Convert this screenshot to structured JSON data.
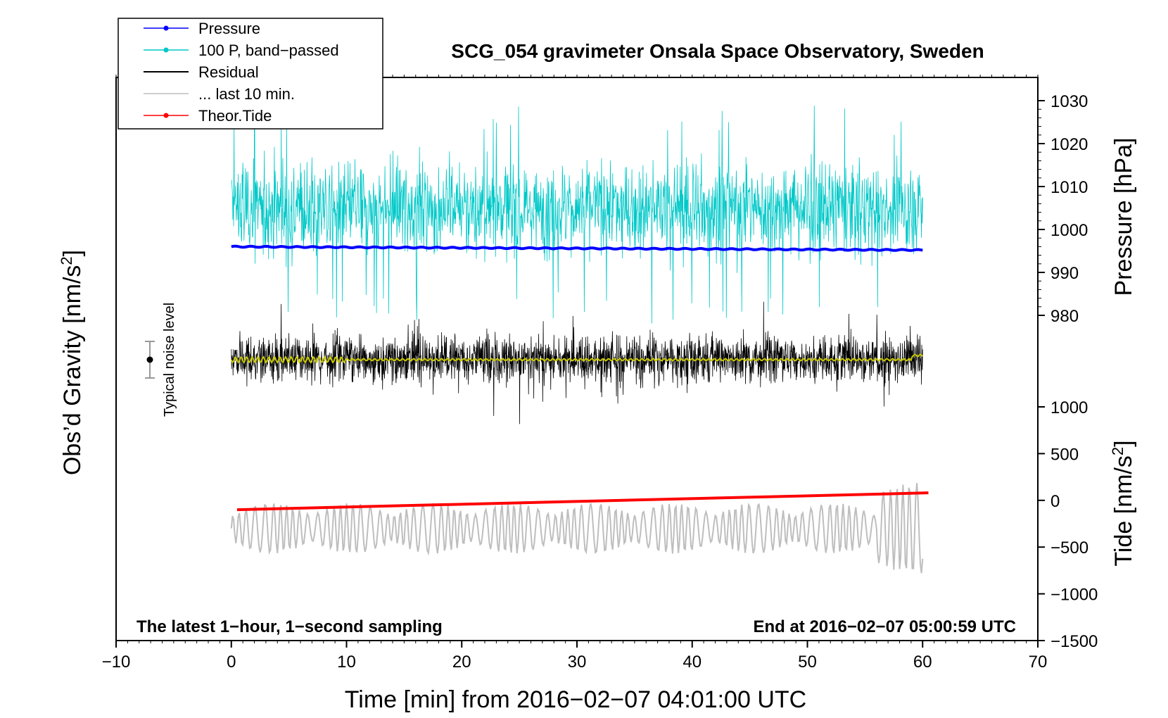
{
  "chart_data": {
    "type": "line",
    "title": "SCG_054 gravimeter Onsala Space Observatory, Sweden",
    "xlabel": "Time [min] from 2016−02−07 04:01:00 UTC",
    "ylabel_left": "Obs’d Gravity [nm/s",
    "ylabel_left_sup": "2",
    "ylabel_left_close": "]",
    "ylabel_pressure": "Pressure [hPa]",
    "ylabel_tide": "Tide [nm/s",
    "ylabel_tide_sup": "2",
    "ylabel_tide_close": "]",
    "xlim": [
      -10,
      70
    ],
    "x_ticks": [
      "−10",
      "0",
      "10",
      "20",
      "30",
      "40",
      "50",
      "60",
      "70"
    ],
    "x_tick_values": [
      -10,
      0,
      10,
      20,
      30,
      40,
      50,
      60,
      70
    ],
    "pressure_axis": {
      "ticks": [
        "1030",
        "1020",
        "1010",
        "1000",
        "990",
        "980"
      ],
      "values": [
        1030,
        1020,
        1010,
        1000,
        990,
        980
      ]
    },
    "tide_axis": {
      "ticks": [
        "1000",
        "500",
        "0",
        "−500",
        "−1000",
        "−1500"
      ],
      "values": [
        1000,
        500,
        0,
        -500,
        -1000,
        -1500
      ]
    },
    "note_left": "The latest 1−hour, 1−second sampling",
    "note_right": "End at 2016−02−07 05:00:59 UTC",
    "noise_label": "Typical noise level",
    "legend": [
      {
        "label": "Pressure",
        "color": "#0000ff",
        "marker": true
      },
      {
        "label": "100 P, band−passed",
        "color": "#00c8c8",
        "marker": true
      },
      {
        "label": "Residual",
        "color": "#000000",
        "marker": false
      },
      {
        "label": "... last 10 min.",
        "color": "#bebebe",
        "marker": false
      },
      {
        "label": "Theor.Tide",
        "color": "#ff0000",
        "marker": true
      }
    ],
    "series": [
      {
        "name": "Pressure",
        "unit": "hPa",
        "x_range": [
          0,
          60
        ],
        "start": 996.0,
        "end": 995.2
      },
      {
        "name": "100 P, band−passed",
        "unit": "hPa (scaled)",
        "x_range": [
          0,
          60
        ],
        "center": 1005,
        "amplitude": 15
      },
      {
        "name": "Residual",
        "unit": "nm/s2",
        "x_range": [
          0,
          60
        ]
      },
      {
        "name": "... last 10 min.",
        "unit": "nm/s2",
        "x_range": [
          0,
          60
        ],
        "center": -300,
        "amplitude": 450
      },
      {
        "name": "Theor.Tide",
        "unit": "nm/s2",
        "x_range": [
          0.5,
          60.5
        ],
        "start": -100,
        "end": 80
      }
    ],
    "colors": {
      "pressure": "#0000ff",
      "bandpassed": "#00c8c8",
      "residual": "#000000",
      "residual_smooth": "#c8c800",
      "last10": "#bebebe",
      "tide": "#ff0000"
    }
  }
}
